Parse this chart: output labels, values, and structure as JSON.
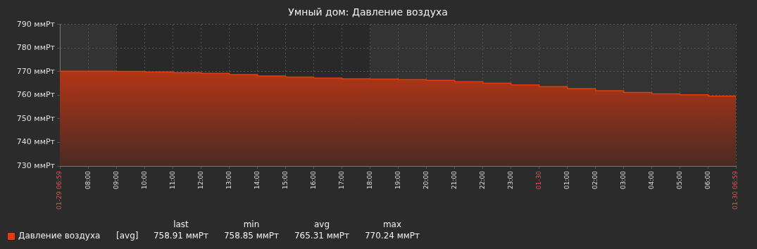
{
  "chart_data": {
    "type": "area",
    "title": "Умный дом: Давление воздуха",
    "x": [
      "--01-29T06:59",
      "--01-29T08:00",
      "--01-29T09:00",
      "--01-29T10:00",
      "--01-29T11:00",
      "--01-29T12:00",
      "--01-29T13:00",
      "--01-29T14:00",
      "--01-29T15:00",
      "--01-29T16:00",
      "--01-29T17:00",
      "--01-29T18:00",
      "--01-29T19:00",
      "--01-29T20:00",
      "--01-29T21:00",
      "--01-29T22:00",
      "--01-29T23:00",
      "--01-30T00:00",
      "--01-30T01:00",
      "--01-30T02:00",
      "--01-30T03:00",
      "--01-30T04:00",
      "--01-30T05:00",
      "--01-30T06:00",
      "--01-30T06:59"
    ],
    "series": [
      {
        "name": "Давление воздуха",
        "color": "#e63b0e",
        "values": [
          770.2,
          770.2,
          770.1,
          769.9,
          769.6,
          769.3,
          768.8,
          768.2,
          767.7,
          767.3,
          767.0,
          766.8,
          766.6,
          766.3,
          765.7,
          765.1,
          764.4,
          763.6,
          762.8,
          761.9,
          761.2,
          760.6,
          760.2,
          759.6,
          758.9
        ]
      }
    ],
    "xlim": [
      "--01-29T06:59",
      "--01-30T06:59"
    ],
    "xticks": [
      {
        "value": "--01-29T06:59",
        "label": "01-29 06:59"
      },
      {
        "value": "--01-29T08:00",
        "label": "08:00"
      },
      {
        "value": "--01-29T09:00",
        "label": "09:00"
      },
      {
        "value": "--01-29T10:00",
        "label": "10:00"
      },
      {
        "value": "--01-29T11:00",
        "label": "11:00"
      },
      {
        "value": "--01-29T12:00",
        "label": "12:00"
      },
      {
        "value": "--01-29T13:00",
        "label": "13:00"
      },
      {
        "value": "--01-29T14:00",
        "label": "14:00"
      },
      {
        "value": "--01-29T15:00",
        "label": "15:00"
      },
      {
        "value": "--01-29T16:00",
        "label": "16:00"
      },
      {
        "value": "--01-29T17:00",
        "label": "17:00"
      },
      {
        "value": "--01-29T18:00",
        "label": "18:00"
      },
      {
        "value": "--01-29T19:00",
        "label": "19:00"
      },
      {
        "value": "--01-29T20:00",
        "label": "20:00"
      },
      {
        "value": "--01-29T21:00",
        "label": "21:00"
      },
      {
        "value": "--01-29T22:00",
        "label": "22:00"
      },
      {
        "value": "--01-29T23:00",
        "label": "23:00"
      },
      {
        "value": "--01-30T00:00",
        "label": "01-30"
      },
      {
        "value": "--01-30T01:00",
        "label": "01:00"
      },
      {
        "value": "--01-30T02:00",
        "label": "02:00"
      },
      {
        "value": "--01-30T03:00",
        "label": "03:00"
      },
      {
        "value": "--01-30T04:00",
        "label": "04:00"
      },
      {
        "value": "--01-30T05:00",
        "label": "05:00"
      },
      {
        "value": "--01-30T06:00",
        "label": "06:00"
      },
      {
        "value": "--01-30T06:59",
        "label": "01-30 06:59"
      }
    ],
    "ylim": [
      730,
      790
    ],
    "yticks": [
      {
        "value": 730,
        "label": "730 ммРт"
      },
      {
        "value": 740,
        "label": "740 ммРт"
      },
      {
        "value": 750,
        "label": "750 ммРт"
      },
      {
        "value": 760,
        "label": "760 ммРт"
      },
      {
        "value": 770,
        "label": "770 ммРт"
      },
      {
        "value": 780,
        "label": "780 ммРт"
      },
      {
        "value": 790,
        "label": "790 ммРт"
      }
    ],
    "grid": true,
    "bands": [
      {
        "axis": "x",
        "from": "--01-29T06:59",
        "to": "--01-29T09:00",
        "color": "#333333"
      },
      {
        "axis": "x",
        "from": "--01-29T18:00",
        "to": "--01-30T06:59",
        "color": "#333333"
      }
    ],
    "legend": "bottom left",
    "annotations": [
      "[avg]",
      "last",
      "758.91 ммРт",
      "min",
      "758.85 ммРт",
      "avg",
      "765.31 ммРт",
      "max",
      "770.24 ммРт"
    ]
  }
}
